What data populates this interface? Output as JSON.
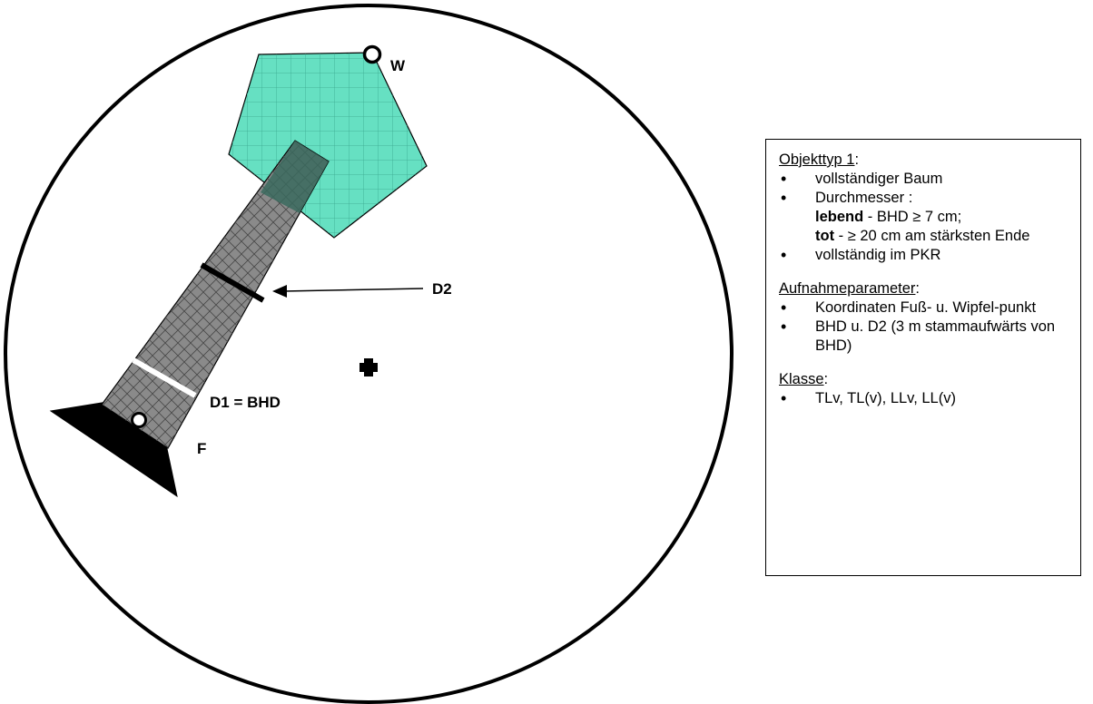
{
  "diagram": {
    "labels": {
      "w": "W",
      "f": "F",
      "d2": "D2",
      "d1": "D1 = BHD"
    },
    "colors": {
      "crown": "#66e0c2",
      "stem": "#8a8a8a",
      "stem_dark": "#3a5a50",
      "outline": "#000000",
      "bhd_line": "#ffffff"
    },
    "icons": [
      "plot-center-cross-icon",
      "foot-point-marker-icon",
      "top-point-marker-icon",
      "arrow-icon"
    ]
  },
  "legend": {
    "objekttyp": {
      "title": "Objekttyp 1",
      "colon": ":",
      "item1": "vollständiger Baum",
      "item2_head": "Durchmesser :",
      "item2_l1_bold": "lebend",
      "item2_l1_rest": " - BHD ≥ 7 cm;",
      "item2_l2_bold": "tot",
      "item2_l2_rest": " - ≥ 20 cm am stärksten Ende",
      "item3": "vollständig im PKR"
    },
    "aufnahme": {
      "title": "Aufnahmeparameter",
      "colon": ":",
      "item1": "Koordinaten Fuß- u. Wipfel-punkt",
      "item2": "BHD u. D2 (3 m stammaufwärts von BHD)"
    },
    "klasse": {
      "title": "Klasse",
      "colon": ":",
      "item1": "TLv, TL(v), LLv, LL(v)"
    }
  }
}
